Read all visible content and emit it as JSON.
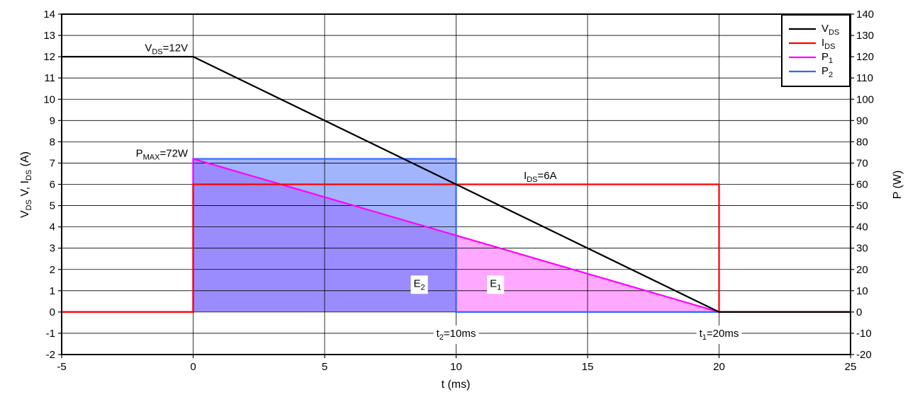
{
  "chart_data": {
    "type": "line",
    "xlabel": "t (ms)",
    "ylabel_left": {
      "main": "V",
      "sub1": "DS",
      "mid": " V, I",
      "sub2": "DS",
      "tail": " (A)"
    },
    "ylabel_right": "P (W)",
    "xlim": [
      -5,
      25
    ],
    "ylim_left": [
      -2,
      14
    ],
    "ylim_right": [
      -20,
      140
    ],
    "xticks": [
      -5,
      0,
      5,
      10,
      15,
      20,
      25
    ],
    "yticks_left": [
      -2,
      -1,
      0,
      1,
      2,
      3,
      4,
      5,
      6,
      7,
      8,
      9,
      10,
      11,
      12,
      13,
      14
    ],
    "yticks_right": [
      -20,
      -10,
      0,
      10,
      20,
      30,
      40,
      50,
      60,
      70,
      80,
      90,
      100,
      110,
      120,
      130,
      140
    ],
    "grid": true,
    "legend_position": "top-right",
    "series": [
      {
        "name": "VDS",
        "label_main": "V",
        "label_sub": "DS",
        "axis": "left",
        "color": "#000000",
        "x": [
          -5,
          0,
          20,
          25
        ],
        "y": [
          12,
          12,
          0,
          0
        ]
      },
      {
        "name": "IDS",
        "label_main": "I",
        "label_sub": "DS",
        "axis": "left",
        "color": "#ff0000",
        "x": [
          -5,
          0,
          0,
          20,
          20,
          25
        ],
        "y": [
          0,
          0,
          6,
          6,
          0,
          0
        ]
      },
      {
        "name": "P1",
        "label_main": "P",
        "label_sub": "1",
        "axis": "right",
        "color": "#ff00ff",
        "x": [
          -5,
          0,
          0,
          20,
          25
        ],
        "y": [
          0,
          0,
          72,
          0,
          0
        ]
      },
      {
        "name": "P2",
        "label_main": "P",
        "label_sub": "2",
        "axis": "right",
        "color": "#3366ff",
        "x": [
          -5,
          0,
          0,
          10,
          10,
          25
        ],
        "y": [
          0,
          0,
          72,
          72,
          0,
          0
        ]
      }
    ],
    "areas": [
      {
        "name": "E2-rect",
        "color": "#a3b4ff",
        "axis": "right",
        "x": [
          0,
          10,
          10,
          0
        ],
        "y": [
          72,
          72,
          0,
          0
        ]
      },
      {
        "name": "E1-triangle",
        "color": "#ffa8ff",
        "axis": "right",
        "x": [
          0,
          20,
          0
        ],
        "y": [
          72,
          0,
          0
        ]
      },
      {
        "name": "E2-overlap",
        "color": "#9a8cff",
        "axis": "right",
        "x": [
          0,
          10,
          10,
          0
        ],
        "y": [
          72,
          36,
          0,
          0
        ]
      }
    ],
    "annotations": [
      {
        "id": "vds12",
        "parts": [
          [
            "V",
            ""
          ],
          [
            "DS",
            "sub"
          ],
          [
            "=12V",
            ""
          ]
        ],
        "x": -0.2,
        "y": 12.25,
        "axis": "left",
        "anchor": "end"
      },
      {
        "id": "pmax",
        "parts": [
          [
            "P",
            ""
          ],
          [
            "MAX",
            "sub"
          ],
          [
            "=72W",
            ""
          ]
        ],
        "x": -0.2,
        "y": 7.3,
        "axis": "left",
        "anchor": "end"
      },
      {
        "id": "ids6",
        "parts": [
          [
            "I",
            ""
          ],
          [
            "DS",
            "sub"
          ],
          [
            "=6A",
            ""
          ]
        ],
        "x": 13.2,
        "y": 6.25,
        "axis": "left",
        "anchor": "middle"
      },
      {
        "id": "e2",
        "parts": [
          [
            "E",
            ""
          ],
          [
            "2",
            "sub"
          ]
        ],
        "x": 8.6,
        "y": 1.35,
        "axis": "left",
        "anchor": "middle",
        "box": true
      },
      {
        "id": "e1",
        "parts": [
          [
            "E",
            ""
          ],
          [
            "1",
            "sub"
          ]
        ],
        "x": 11.5,
        "y": 1.35,
        "axis": "left",
        "anchor": "middle",
        "box": true
      },
      {
        "id": "t2",
        "parts": [
          [
            "t",
            ""
          ],
          [
            "2",
            "sub"
          ],
          [
            "=10ms",
            ""
          ]
        ],
        "x": 10,
        "y": -1,
        "axis": "left",
        "anchor": "middle",
        "box": true
      },
      {
        "id": "t1",
        "parts": [
          [
            "t",
            ""
          ],
          [
            "1",
            "sub"
          ],
          [
            "=20ms",
            ""
          ]
        ],
        "x": 20,
        "y": -1,
        "axis": "left",
        "anchor": "middle",
        "box": true
      }
    ]
  }
}
